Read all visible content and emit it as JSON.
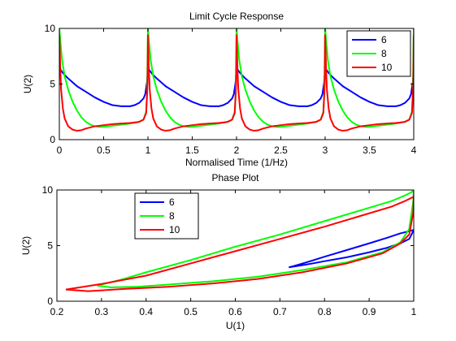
{
  "chart_data": [
    {
      "type": "line",
      "title": "Limit Cycle Response",
      "xlabel": "Normalised Time (1/Hz)",
      "ylabel": "U(2)",
      "xlim": [
        0,
        4
      ],
      "ylim": [
        0,
        10
      ],
      "xticks": [
        "0",
        "0.5",
        "1",
        "1.5",
        "2",
        "2.5",
        "3",
        "3.5",
        "4"
      ],
      "yticks": [
        "0",
        "5",
        "10"
      ],
      "grid": false,
      "legend_position": "top-right",
      "period": 1,
      "series": [
        {
          "name": "6",
          "color": "#0000ff",
          "x": [
            0,
            0.02,
            0.05,
            0.1,
            0.2,
            0.3,
            0.4,
            0.5,
            0.6,
            0.7,
            0.8,
            0.85,
            0.9,
            0.95,
            0.97,
            0.99,
            1.0
          ],
          "y": [
            6.5,
            6.2,
            5.9,
            5.5,
            4.8,
            4.3,
            3.8,
            3.4,
            3.1,
            3.0,
            3.0,
            3.1,
            3.3,
            3.7,
            4.1,
            5.2,
            6.5
          ]
        },
        {
          "name": "8",
          "color": "#00ff00",
          "x": [
            0,
            0.01,
            0.03,
            0.06,
            0.1,
            0.15,
            0.2,
            0.25,
            0.3,
            0.35,
            0.4,
            0.45,
            0.5,
            0.55,
            0.6,
            0.7,
            0.8,
            0.9,
            0.95,
            0.98,
            0.99,
            1.0
          ],
          "y": [
            10,
            9.0,
            7.2,
            5.7,
            4.5,
            3.4,
            2.6,
            2.0,
            1.6,
            1.35,
            1.2,
            1.15,
            1.15,
            1.2,
            1.25,
            1.35,
            1.45,
            1.6,
            1.8,
            2.5,
            4.0,
            10
          ]
        },
        {
          "name": "10",
          "color": "#ff0000",
          "x": [
            0,
            0.005,
            0.01,
            0.02,
            0.04,
            0.06,
            0.1,
            0.15,
            0.2,
            0.25,
            0.3,
            0.4,
            0.5,
            0.6,
            0.7,
            0.8,
            0.9,
            0.95,
            0.98,
            0.995,
            1.0
          ],
          "y": [
            9.4,
            8.0,
            6.5,
            4.5,
            2.8,
            1.9,
            1.2,
            0.9,
            0.8,
            0.85,
            1.0,
            1.2,
            1.3,
            1.4,
            1.45,
            1.5,
            1.6,
            1.8,
            2.4,
            5.0,
            9.4
          ]
        }
      ]
    },
    {
      "type": "line",
      "title": "Phase Plot",
      "xlabel": "U(1)",
      "ylabel": "U(2)",
      "xlim": [
        0.2,
        1
      ],
      "ylim": [
        0,
        10
      ],
      "xticks": [
        "0.2",
        "0.3",
        "0.4",
        "0.5",
        "0.6",
        "0.7",
        "0.8",
        "0.9",
        "1"
      ],
      "yticks": [
        "0",
        "5",
        "10"
      ],
      "grid": false,
      "legend_position": "top-left",
      "series": [
        {
          "name": "6",
          "color": "#0000ff",
          "x": [
            0.72,
            0.76,
            0.8,
            0.85,
            0.9,
            0.94,
            0.97,
            0.99,
            0.995,
            1.0,
            0.999,
            0.995,
            0.99,
            0.97,
            0.94,
            0.9,
            0.85,
            0.8,
            0.76,
            0.73,
            0.72
          ],
          "y": [
            3.05,
            3.3,
            3.6,
            3.95,
            4.4,
            4.8,
            5.2,
            5.6,
            6.0,
            6.4,
            6.4,
            6.35,
            6.3,
            6.1,
            5.7,
            5.2,
            4.6,
            4.0,
            3.5,
            3.15,
            3.05
          ]
        },
        {
          "name": "8",
          "color": "#00ff00",
          "x": [
            0.29,
            0.35,
            0.4,
            0.5,
            0.6,
            0.7,
            0.8,
            0.9,
            0.95,
            0.98,
            0.995,
            1.0,
            0.999,
            0.99,
            0.97,
            0.93,
            0.85,
            0.75,
            0.65,
            0.55,
            0.45,
            0.38,
            0.32,
            0.29
          ],
          "y": [
            1.4,
            2.0,
            2.6,
            3.7,
            4.9,
            6.0,
            7.2,
            8.4,
            9.0,
            9.5,
            9.8,
            10,
            9.0,
            6.5,
            5.3,
            4.4,
            3.5,
            2.8,
            2.2,
            1.8,
            1.5,
            1.3,
            1.25,
            1.4
          ]
        },
        {
          "name": "10",
          "color": "#ff0000",
          "x": [
            0.22,
            0.3,
            0.4,
            0.5,
            0.6,
            0.7,
            0.8,
            0.9,
            0.95,
            0.98,
            0.995,
            1.0,
            0.999,
            0.99,
            0.97,
            0.93,
            0.85,
            0.75,
            0.65,
            0.55,
            0.45,
            0.35,
            0.27,
            0.22
          ],
          "y": [
            1.05,
            1.55,
            2.3,
            3.4,
            4.5,
            5.6,
            6.7,
            7.9,
            8.5,
            9.0,
            9.3,
            9.4,
            8.0,
            6.0,
            5.2,
            4.3,
            3.4,
            2.6,
            2.0,
            1.6,
            1.3,
            1.1,
            0.9,
            1.05
          ]
        }
      ]
    }
  ]
}
